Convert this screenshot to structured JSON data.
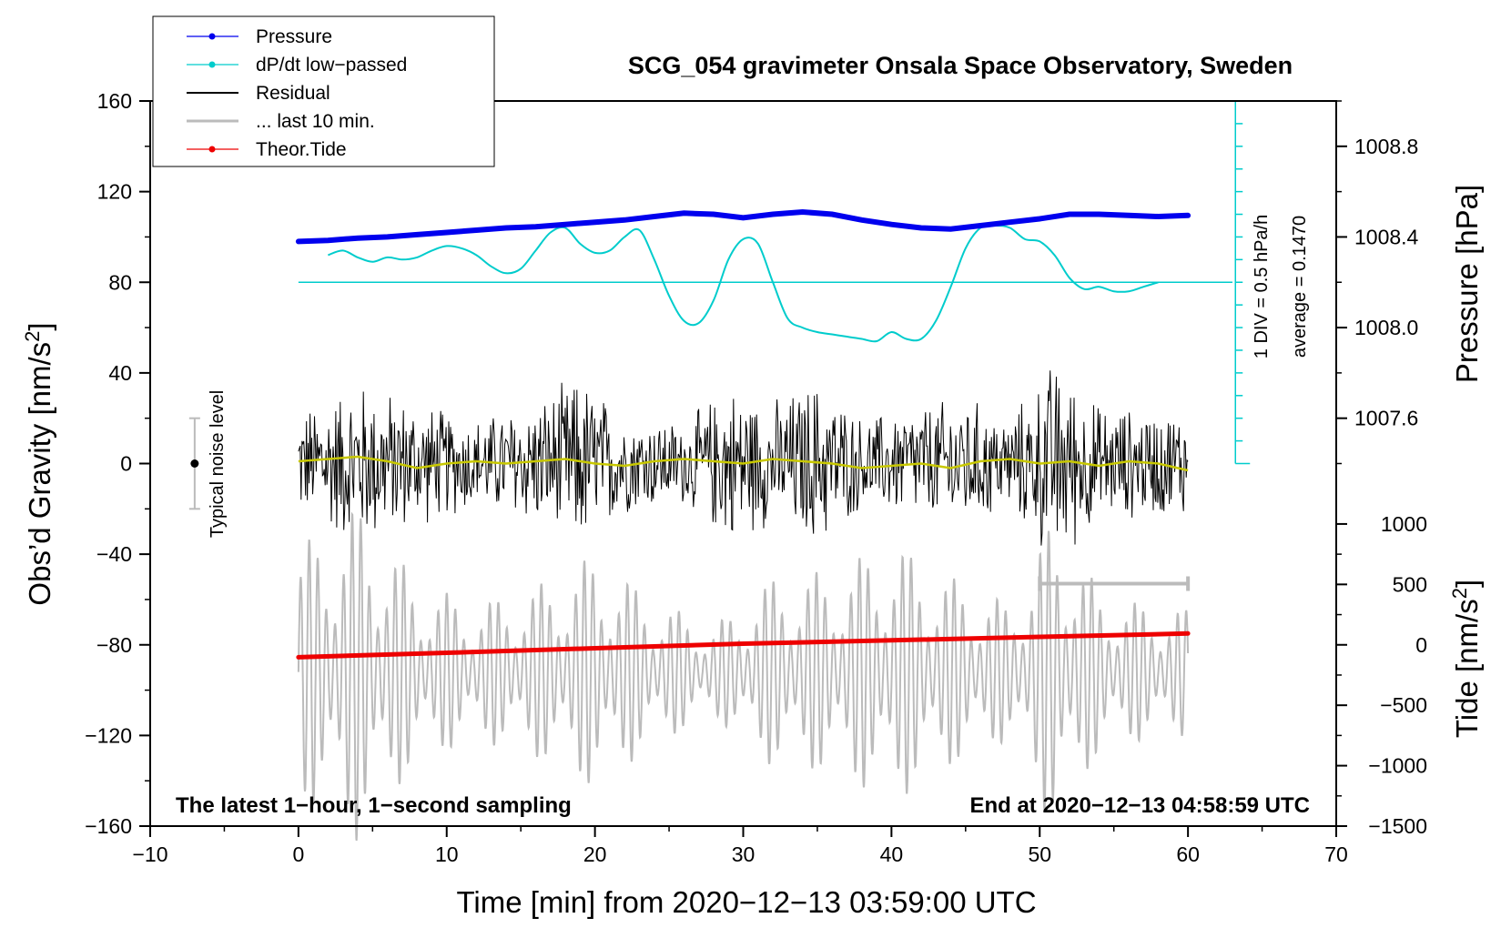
{
  "chart_data": {
    "type": "line",
    "title": "SCG_054 gravimeter Onsala Space Observatory, Sweden",
    "xlabel": "Time [min] from 2020−12−13 03:59:00 UTC",
    "ylabel_left_main": "Obs’d Gravity [nm/s",
    "ylabel_left_sup": "2",
    "ylabel_left_end": "]",
    "ylabel_right_top": "Pressure [hPa]",
    "ylabel_right_bottom_main": "Tide [nm/s",
    "ylabel_right_bottom_sup": "2",
    "ylabel_right_bottom_end": "]",
    "xlim": [
      -10,
      70
    ],
    "ylim": [
      -160,
      160
    ],
    "x_ticks": [
      "−10",
      "0",
      "10",
      "20",
      "30",
      "40",
      "50",
      "60",
      "70"
    ],
    "x_tick_values": [
      -10,
      0,
      10,
      20,
      30,
      40,
      50,
      60,
      70
    ],
    "y_ticks": [
      "−160",
      "−120",
      "−80",
      "−40",
      "0",
      "40",
      "80",
      "120",
      "160"
    ],
    "y_tick_values": [
      -160,
      -120,
      -80,
      -40,
      0,
      40,
      80,
      120,
      160
    ],
    "pressure_axis": {
      "ticks": [
        "1007.6",
        "1008.0",
        "1008.4",
        "1008.8"
      ],
      "tick_values": [
        1007.6,
        1008.0,
        1008.4,
        1008.8
      ],
      "range_hpa": [
        1007.0,
        1009.0
      ],
      "range_gravity": [
        -40,
        160
      ]
    },
    "tide_axis": {
      "ticks": [
        "−1500",
        "−1000",
        "−500",
        "0",
        "500",
        "1000"
      ],
      "tick_values": [
        -1500,
        -1000,
        -500,
        0,
        500,
        1000
      ],
      "range_tide": [
        -1500,
        1000
      ],
      "range_gravity": [
        -160,
        -26.67
      ]
    },
    "legend": [
      {
        "label": "Pressure",
        "color": "#0000ee",
        "marker": true
      },
      {
        "label": "dP/dt low−passed",
        "color": "#00cccc",
        "marker": true
      },
      {
        "label": "Residual",
        "color": "#000000",
        "marker": false
      },
      {
        "label": "... last 10 min.",
        "color": "#bbbbbb",
        "marker": false
      },
      {
        "label": "Theor.Tide",
        "color": "#ee0000",
        "marker": true
      }
    ],
    "annotations": {
      "bottom_left": "The latest 1−hour, 1−second sampling",
      "bottom_right": "End at 2020−12−13 04:58:59 UTC",
      "noise_label": "Typical noise level",
      "scale_div": "1 DIV = 0.5 hPa/h",
      "average": "average = 0.1470"
    },
    "noise_bar": {
      "x": -7,
      "y": 0,
      "low": -20,
      "high": 20
    },
    "gray_range_bar": {
      "x0": 50,
      "x1": 60,
      "y": -53
    },
    "dpdt_baseline_y": 80,
    "series": [
      {
        "name": "Pressure",
        "color": "#0000ee",
        "x": [
          0,
          2,
          4,
          6,
          8,
          10,
          12,
          14,
          16,
          18,
          20,
          22,
          24,
          26,
          28,
          30,
          32,
          34,
          36,
          38,
          40,
          42,
          44,
          46,
          48,
          50,
          52,
          54,
          56,
          58,
          60
        ],
        "y": [
          98,
          98.5,
          99.5,
          100,
          101,
          102,
          103,
          104,
          104.5,
          105.5,
          106.5,
          107.5,
          109,
          110.5,
          110,
          108.5,
          110,
          111,
          110,
          107.5,
          105.5,
          104,
          103.5,
          105,
          106.5,
          108,
          110,
          110,
          109.5,
          109,
          109.5
        ]
      },
      {
        "name": "dP/dt low-passed",
        "color": "#00cccc",
        "x": [
          2,
          3,
          4,
          5,
          6,
          7,
          8,
          9,
          10,
          11,
          12,
          13,
          14,
          15,
          16,
          17,
          18,
          19,
          20,
          21,
          22,
          23,
          24,
          25,
          26,
          27,
          28,
          29,
          30,
          31,
          32,
          33,
          34,
          35,
          36,
          37,
          38,
          39,
          40,
          41,
          42,
          43,
          44,
          45,
          46,
          47,
          48,
          49,
          50,
          51,
          52,
          53,
          54,
          55,
          56,
          57,
          58
        ],
        "y": [
          92,
          94,
          91,
          89,
          91,
          90,
          91,
          94,
          96,
          95,
          92,
          87,
          84,
          86,
          94,
          102,
          104,
          97,
          93,
          94,
          100,
          103,
          90,
          74,
          63,
          62,
          72,
          90,
          99,
          97,
          80,
          64,
          60,
          58,
          57,
          56,
          55,
          54,
          58,
          55,
          55,
          63,
          78,
          95,
          104,
          105,
          104,
          99,
          98,
          92,
          82,
          77,
          78,
          76,
          76,
          78,
          80
        ]
      },
      {
        "name": "Residual",
        "color": "#000000",
        "x": [
          0,
          60
        ],
        "amplitude_envelope": [
          [
            0,
            25
          ],
          [
            4,
            40
          ],
          [
            8,
            30
          ],
          [
            12,
            22
          ],
          [
            16,
            30
          ],
          [
            19,
            42
          ],
          [
            22,
            24
          ],
          [
            26,
            20
          ],
          [
            29,
            38
          ],
          [
            32,
            30
          ],
          [
            35,
            40
          ],
          [
            38,
            22
          ],
          [
            42,
            28
          ],
          [
            45,
            32
          ],
          [
            48,
            22
          ],
          [
            51,
            50
          ],
          [
            54,
            28
          ],
          [
            57,
            26
          ],
          [
            60,
            26
          ]
        ]
      },
      {
        "name": "... last 10 min.",
        "color": "#bbbbbb",
        "x": [
          0,
          60
        ],
        "amplitude_envelope": [
          [
            0,
            55
          ],
          [
            4,
            75
          ],
          [
            8,
            40
          ],
          [
            12,
            30
          ],
          [
            16,
            38
          ],
          [
            20,
            52
          ],
          [
            24,
            32
          ],
          [
            28,
            20
          ],
          [
            32,
            42
          ],
          [
            36,
            45
          ],
          [
            40,
            58
          ],
          [
            44,
            42
          ],
          [
            48,
            30
          ],
          [
            51,
            70
          ],
          [
            54,
            36
          ],
          [
            57,
            30
          ],
          [
            60,
            28
          ]
        ]
      },
      {
        "name": "Smoothed residual",
        "color": "#c8c800",
        "x": [
          0,
          2,
          4,
          6,
          8,
          10,
          12,
          14,
          16,
          18,
          20,
          22,
          24,
          26,
          28,
          30,
          32,
          34,
          36,
          38,
          40,
          42,
          44,
          46,
          48,
          50,
          52,
          54,
          56,
          58,
          60
        ],
        "y": [
          1,
          2,
          3,
          1,
          -2,
          0,
          1,
          0,
          1,
          2,
          0,
          -1,
          1,
          2,
          1,
          0,
          2,
          1,
          0,
          -2,
          -1,
          0,
          -2,
          1,
          2,
          0,
          1,
          -1,
          1,
          0,
          -3
        ]
      },
      {
        "name": "Theor.Tide",
        "color": "#ee0000",
        "x": [
          0,
          10,
          20,
          30,
          40,
          50,
          60
        ],
        "y": [
          -85.5,
          -83.5,
          -81.5,
          -79.5,
          -78,
          -76.5,
          -75
        ]
      }
    ]
  }
}
